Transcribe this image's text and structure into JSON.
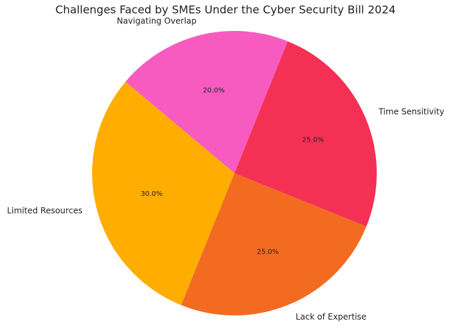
{
  "chart_data": {
    "type": "pie",
    "title": "Challenges Faced by SMEs Under the Cyber Security Bill 2024",
    "categories": [
      "Navigating Overlap",
      "Limited Resources",
      "Lack of Expertise",
      "Time Sensitivity"
    ],
    "values": [
      20,
      30,
      25,
      25
    ],
    "value_labels": [
      "20.0%",
      "30.0%",
      "25.0%",
      "25.0%"
    ],
    "colors": [
      "#f75bc0",
      "#ffae00",
      "#f26b21",
      "#f53055"
    ],
    "start_angle": 68
  }
}
